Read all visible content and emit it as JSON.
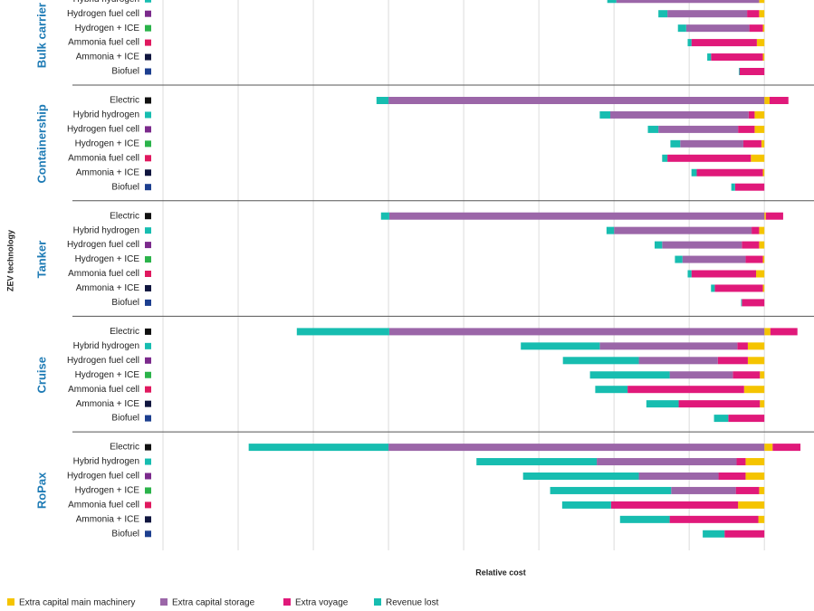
{
  "chart_data": {
    "type": "stacked_bar_h",
    "x_label": "Relative cost",
    "y_label": "ZEV technology",
    "xlim": [
      9,
      -0.6
    ],
    "xticks": [
      0,
      1,
      2,
      3,
      4,
      5,
      6,
      7,
      8
    ],
    "grid": true,
    "legend": "bottom",
    "groups": [
      {
        "name": "Bulk carrier",
        "categories": [
          "Hybrid hydrogen",
          "Hydrogen fuel cell",
          "Hydrogen + ICE",
          "Ammonia fuel cell",
          "Ammonia + ICE",
          "Biofuel"
        ],
        "marker_colors": [
          "#17bdb0",
          "#7b2a8c",
          "#2bb34a",
          "#e0195f",
          "#10163f",
          "#1d3f8f"
        ]
      },
      {
        "name": "Containership",
        "categories": [
          "Electric",
          "Hybrid hydrogen",
          "Hydrogen fuel cell",
          "Hydrogen + ICE",
          "Ammonia fuel cell",
          "Ammonia + ICE",
          "Biofuel"
        ],
        "marker_colors": [
          "#111111",
          "#17bdb0",
          "#7b2a8c",
          "#2bb34a",
          "#e0195f",
          "#10163f",
          "#1d3f8f"
        ]
      },
      {
        "name": "Tanker",
        "categories": [
          "Electric",
          "Hybrid hydrogen",
          "Hydrogen fuel cell",
          "Hydrogen + ICE",
          "Ammonia fuel cell",
          "Ammonia + ICE",
          "Biofuel"
        ],
        "marker_colors": [
          "#111111",
          "#17bdb0",
          "#7b2a8c",
          "#2bb34a",
          "#e0195f",
          "#10163f",
          "#1d3f8f"
        ]
      },
      {
        "name": "Cruise",
        "categories": [
          "Electric",
          "Hybrid hydrogen",
          "Hydrogen fuel cell",
          "Hydrogen + ICE",
          "Ammonia fuel cell",
          "Ammonia + ICE",
          "Biofuel"
        ],
        "marker_colors": [
          "#111111",
          "#17bdb0",
          "#7b2a8c",
          "#2bb34a",
          "#e0195f",
          "#10163f",
          "#1d3f8f"
        ]
      },
      {
        "name": "RoPax",
        "categories": [
          "Electric",
          "Hybrid hydrogen",
          "Hydrogen fuel cell",
          "Hydrogen + ICE",
          "Ammonia fuel cell",
          "Ammonia + ICE",
          "Biofuel"
        ],
        "marker_colors": [
          "#111111",
          "#17bdb0",
          "#7b2a8c",
          "#2bb34a",
          "#e0195f",
          "#10163f",
          "#1d3f8f"
        ]
      }
    ],
    "series": [
      {
        "name": "Extra capital main machinery",
        "color": "#f5c400",
        "values": [
          [
            0.07,
            0.07,
            0.02,
            0.1,
            0.02,
            0
          ],
          [
            -0.07,
            0.13,
            0.13,
            0.04,
            0.18,
            0.02,
            0
          ],
          [
            -0.02,
            0.07,
            0.07,
            0.02,
            0.11,
            0.02,
            0
          ],
          [
            -0.08,
            0.22,
            0.22,
            0.06,
            0.27,
            0.06,
            0
          ],
          [
            -0.11,
            0.25,
            0.25,
            0.07,
            0.35,
            0.08,
            0
          ]
        ]
      },
      {
        "name": "Extra voyage",
        "color": "#e0197a",
        "values": [
          [
            0,
            0.16,
            0.18,
            0.87,
            0.69,
            0.33
          ],
          [
            -0.25,
            0.08,
            0.22,
            0.24,
            1.11,
            0.88,
            0.39
          ],
          [
            -0.23,
            0.1,
            0.23,
            0.23,
            0.86,
            0.64,
            0.3
          ],
          [
            -0.36,
            0.14,
            0.4,
            0.36,
            1.55,
            1.08,
            0.48
          ],
          [
            -0.37,
            0.12,
            0.36,
            0.31,
            1.69,
            1.18,
            0.53
          ]
        ]
      },
      {
        "name": "Extra capital storage",
        "color": "#9b66a8",
        "values": [
          [
            1.9,
            1.06,
            0.84,
            0,
            0,
            0
          ],
          [
            5.0,
            1.84,
            1.06,
            0.84,
            0,
            0,
            0
          ],
          [
            4.99,
            1.83,
            1.06,
            0.84,
            0,
            0,
            0
          ],
          [
            4.99,
            1.83,
            1.05,
            0.84,
            0,
            0,
            0
          ],
          [
            5.0,
            1.86,
            1.06,
            0.86,
            0,
            0,
            0
          ]
        ]
      },
      {
        "name": "Revenue lost",
        "color": "#17bdb0",
        "values": [
          [
            0.12,
            0.12,
            0.11,
            0.05,
            0.05,
            0.01
          ],
          [
            0.16,
            0.14,
            0.14,
            0.13,
            0.07,
            0.07,
            0.05
          ],
          [
            0.11,
            0.1,
            0.1,
            0.1,
            0.05,
            0.05,
            0.01
          ],
          [
            1.23,
            1.05,
            1.01,
            1.06,
            0.43,
            0.43,
            0.19
          ],
          [
            1.86,
            1.6,
            1.54,
            1.61,
            0.65,
            0.66,
            0.29
          ]
        ]
      }
    ],
    "legend_order": [
      0,
      2,
      1,
      3
    ]
  }
}
